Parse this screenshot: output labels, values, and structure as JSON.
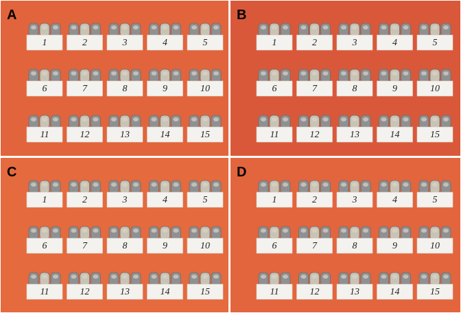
{
  "panels": [
    {
      "label": "A",
      "cards": [
        "1",
        "2",
        "3",
        "4",
        "5",
        "6",
        "7",
        "8",
        "9",
        "10",
        "11",
        "12",
        "13",
        "14",
        "15"
      ]
    },
    {
      "label": "B",
      "cards": [
        "1",
        "2",
        "3",
        "4",
        "5",
        "6",
        "7",
        "8",
        "9",
        "10",
        "11",
        "12",
        "13",
        "14",
        "15"
      ]
    },
    {
      "label": "C",
      "cards": [
        "1",
        "2",
        "3",
        "4",
        "5",
        "6",
        "7",
        "8",
        "9",
        "10",
        "11",
        "12",
        "13",
        "14",
        "15"
      ]
    },
    {
      "label": "D",
      "cards": [
        "1",
        "2",
        "3",
        "4",
        "5",
        "6",
        "7",
        "8",
        "9",
        "10",
        "11",
        "12",
        "13",
        "14",
        "15"
      ]
    }
  ]
}
